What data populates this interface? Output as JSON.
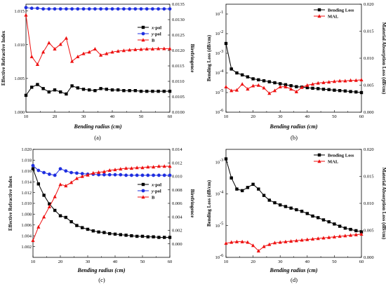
{
  "colors": {
    "black": "#000000",
    "blue": "#1f2fe0",
    "red": "#ee1111"
  },
  "chart_data": [
    {
      "type": "line",
      "caption": "(a)",
      "xlabel": "Bending radius (cm)",
      "xlim": [
        10,
        60
      ],
      "xticks": [
        10,
        20,
        30,
        40,
        50,
        60
      ],
      "ylabel_left": "Effective Refractive Index",
      "ylim_left": [
        1.0,
        1.016
      ],
      "yticks_left": [
        1.0,
        1.005,
        1.01,
        1.015
      ],
      "yticklabels_left": [
        "1.000",
        "1.005",
        "1.010",
        "1.015"
      ],
      "ylabel_right": "Birefringence",
      "ylim_right": [
        0.01,
        0.0135
      ],
      "yticks_right": [
        0.01,
        0.0105,
        0.011,
        0.0115,
        0.012,
        0.0125,
        0.013,
        0.0135
      ],
      "yticklabels_right": [
        "0.0100",
        "0.0105",
        "0.0110",
        "0.0115",
        "0.0120",
        "0.0125",
        "0.0130",
        "0.0135"
      ],
      "legend_position": "right",
      "x": [
        10,
        12,
        14,
        16,
        18,
        20,
        22,
        24,
        26,
        28,
        30,
        32,
        34,
        36,
        38,
        40,
        42,
        44,
        46,
        48,
        50,
        52,
        54,
        56,
        58,
        60
      ],
      "series": [
        {
          "name": "x-pol",
          "axis": "left",
          "color": "#000000",
          "marker": "square",
          "values": [
            1.0025,
            1.0037,
            1.0041,
            1.0035,
            1.003,
            1.0033,
            1.003,
            1.0027,
            1.0039,
            1.0036,
            1.0034,
            1.0033,
            1.0032,
            1.0035,
            1.0034,
            1.0033,
            1.0033,
            1.0032,
            1.0032,
            1.0032,
            1.0031,
            1.0031,
            1.0031,
            1.0031,
            1.0031,
            1.0031
          ]
        },
        {
          "name": "y-pol",
          "axis": "left",
          "color": "#1f2fe0",
          "marker": "circle",
          "values": [
            1.0155,
            1.0154,
            1.0154,
            1.0153,
            1.0153,
            1.0153,
            1.0153,
            1.0153,
            1.0153,
            1.0153,
            1.0153,
            1.0153,
            1.0153,
            1.0153,
            1.0153,
            1.0153,
            1.0153,
            1.0153,
            1.0153,
            1.0153,
            1.0153,
            1.0153,
            1.0153,
            1.0153,
            1.0153,
            1.0153
          ]
        },
        {
          "name": "B",
          "axis": "right",
          "color": "#ee1111",
          "marker": "triangle",
          "values": [
            0.01315,
            0.0118,
            0.01155,
            0.01195,
            0.01225,
            0.01205,
            0.0122,
            0.0124,
            0.01165,
            0.0118,
            0.0119,
            0.01195,
            0.01205,
            0.01185,
            0.0119,
            0.01195,
            0.01198,
            0.012,
            0.01202,
            0.01203,
            0.01204,
            0.01205,
            0.01205,
            0.01206,
            0.01206,
            0.01206
          ]
        }
      ]
    },
    {
      "type": "line",
      "caption": "(b)",
      "xlabel": "Bending radius (cm)",
      "xlim": [
        10,
        60
      ],
      "xticks": [
        10,
        20,
        30,
        40,
        50,
        60
      ],
      "ylabel_left": "Bending Loss (dB/cm)",
      "yscale_left": "log",
      "ylim_left_exp": [
        -6,
        -0.5
      ],
      "ylabel_right": "Material Absorption Loss (dB/cm)",
      "ylim_right": [
        0,
        0.02
      ],
      "yticks_right": [
        0.0,
        0.005,
        0.01,
        0.015,
        0.02
      ],
      "yticklabels_right": [
        "0.000",
        "0.005",
        "0.010",
        "0.015",
        "0.020"
      ],
      "legend_position": "top-right",
      "x": [
        10,
        12,
        14,
        16,
        18,
        20,
        22,
        24,
        26,
        28,
        30,
        32,
        34,
        36,
        38,
        40,
        42,
        44,
        46,
        48,
        50,
        52,
        54,
        56,
        58,
        60
      ],
      "series": [
        {
          "name": "Bending Loss",
          "axis": "left",
          "color": "#000000",
          "marker": "square",
          "values_log10": [
            -2.5,
            -3.8,
            -4.0,
            -4.1,
            -4.2,
            -4.3,
            -4.35,
            -4.4,
            -4.45,
            -4.5,
            -4.55,
            -4.6,
            -4.65,
            -4.7,
            -4.72,
            -4.75,
            -4.78,
            -4.8,
            -4.83,
            -4.85,
            -4.88,
            -4.9,
            -4.92,
            -4.95,
            -4.97,
            -5.0
          ]
        },
        {
          "name": "MAL",
          "axis": "right",
          "color": "#ee1111",
          "marker": "triangle",
          "values": [
            0.0047,
            0.004,
            0.0041,
            0.0052,
            0.0043,
            0.0049,
            0.005,
            0.0045,
            0.0035,
            0.004,
            0.0047,
            0.0047,
            0.0043,
            0.0038,
            0.0046,
            0.005,
            0.0052,
            0.0054,
            0.0055,
            0.0056,
            0.0057,
            0.0058,
            0.0058,
            0.0059,
            0.0059,
            0.006
          ]
        }
      ]
    },
    {
      "type": "line",
      "caption": "(c)",
      "xlabel": "Bending radius (cm)",
      "xlim": [
        10,
        60
      ],
      "xticks": [
        10,
        20,
        30,
        40,
        50,
        60
      ],
      "ylabel_left": "Effective Refractive Index",
      "ylim_left": [
        1.0,
        1.02
      ],
      "yticks_left": [
        1.002,
        1.004,
        1.006,
        1.008,
        1.01,
        1.012,
        1.014,
        1.016,
        1.018,
        1.02
      ],
      "yticklabels_left": [
        "1.002",
        "1.004",
        "1.006",
        "1.008",
        "1.010",
        "1.012",
        "1.014",
        "1.016",
        "1.018",
        "1.020"
      ],
      "ylabel_right": "Birefringence",
      "ylim_right": [
        -0.002,
        0.014
      ],
      "yticks_right": [
        0.0,
        0.002,
        0.004,
        0.006,
        0.008,
        0.01,
        0.012,
        0.014
      ],
      "yticklabels_right": [
        "0.000",
        "0.002",
        "0.004",
        "0.006",
        "0.008",
        "0.010",
        "0.012",
        "0.014"
      ],
      "legend_position": "right",
      "x": [
        10,
        12,
        14,
        16,
        18,
        20,
        22,
        24,
        26,
        28,
        30,
        32,
        34,
        36,
        38,
        40,
        42,
        44,
        46,
        48,
        50,
        52,
        54,
        56,
        58,
        60
      ],
      "series": [
        {
          "name": "x-pol",
          "axis": "left",
          "color": "#000000",
          "marker": "square",
          "values": [
            1.0164,
            1.0136,
            1.0115,
            1.0099,
            1.0087,
            1.0077,
            1.0074,
            1.0066,
            1.0059,
            1.0055,
            1.0052,
            1.0049,
            1.0047,
            1.0046,
            1.0044,
            1.0043,
            1.0042,
            1.0041,
            1.004,
            1.0039,
            1.0039,
            1.0038,
            1.0038,
            1.0037,
            1.0037,
            1.0037
          ]
        },
        {
          "name": "y-pol",
          "axis": "left",
          "color": "#1f2fe0",
          "marker": "circle",
          "values": [
            1.017,
            1.0161,
            1.0157,
            1.0154,
            1.0152,
            1.0164,
            1.016,
            1.0157,
            1.0156,
            1.0155,
            1.0154,
            1.0154,
            1.0153,
            1.0153,
            1.0153,
            1.0153,
            1.0153,
            1.0152,
            1.0152,
            1.0152,
            1.0152,
            1.0152,
            1.0152,
            1.0152,
            1.0152,
            1.0152
          ]
        },
        {
          "name": "B",
          "axis": "right",
          "color": "#ee1111",
          "marker": "triangle",
          "values": [
            0.0005,
            0.0025,
            0.004,
            0.0055,
            0.007,
            0.0088,
            0.0086,
            0.0091,
            0.0097,
            0.01,
            0.0102,
            0.0105,
            0.0106,
            0.0107,
            0.0109,
            0.011,
            0.0111,
            0.0112,
            0.0112,
            0.0113,
            0.0113,
            0.0114,
            0.0114,
            0.0115,
            0.0115,
            0.0115
          ]
        }
      ]
    },
    {
      "type": "line",
      "caption": "(d)",
      "xlabel": "Bending radius (cm)",
      "xlim": [
        10,
        60
      ],
      "xticks": [
        10,
        20,
        30,
        40,
        50,
        60
      ],
      "ylabel_left": "Bending Loss (dB/cm)",
      "yscale_left": "log",
      "ylim_left_exp": [
        -6,
        -2.6
      ],
      "ylabel_right": "Material Absorption Loss (dB/cm)",
      "ylim_right": [
        0,
        0.02
      ],
      "yticks_right": [
        0.0,
        0.005,
        0.01,
        0.015,
        0.02
      ],
      "yticklabels_right": [
        "0.000",
        "0.005",
        "0.010",
        "0.015",
        "0.020"
      ],
      "legend_position": "top-right",
      "x": [
        10,
        12,
        14,
        16,
        18,
        20,
        22,
        24,
        26,
        28,
        30,
        32,
        34,
        36,
        38,
        40,
        42,
        44,
        46,
        48,
        50,
        52,
        54,
        56,
        58,
        60
      ],
      "series": [
        {
          "name": "Bending Loss",
          "axis": "left",
          "color": "#000000",
          "marker": "square",
          "values_log10": [
            -2.9,
            -3.5,
            -3.85,
            -3.9,
            -3.8,
            -3.7,
            -3.85,
            -4.05,
            -4.2,
            -4.28,
            -4.35,
            -4.4,
            -4.45,
            -4.5,
            -4.55,
            -4.62,
            -4.7,
            -4.75,
            -4.82,
            -4.88,
            -4.95,
            -5.02,
            -5.08,
            -5.12,
            -5.16,
            -5.2
          ]
        },
        {
          "name": "MAL",
          "axis": "right",
          "color": "#ee1111",
          "marker": "triangle",
          "values": [
            0.0026,
            0.0028,
            0.0029,
            0.0029,
            0.0028,
            0.0022,
            0.0012,
            0.002,
            0.0024,
            0.0027,
            0.0028,
            0.0029,
            0.003,
            0.0031,
            0.0032,
            0.0033,
            0.0034,
            0.0035,
            0.0036,
            0.0037,
            0.0038,
            0.0039,
            0.004,
            0.0041,
            0.0042,
            0.0043
          ]
        }
      ]
    }
  ]
}
